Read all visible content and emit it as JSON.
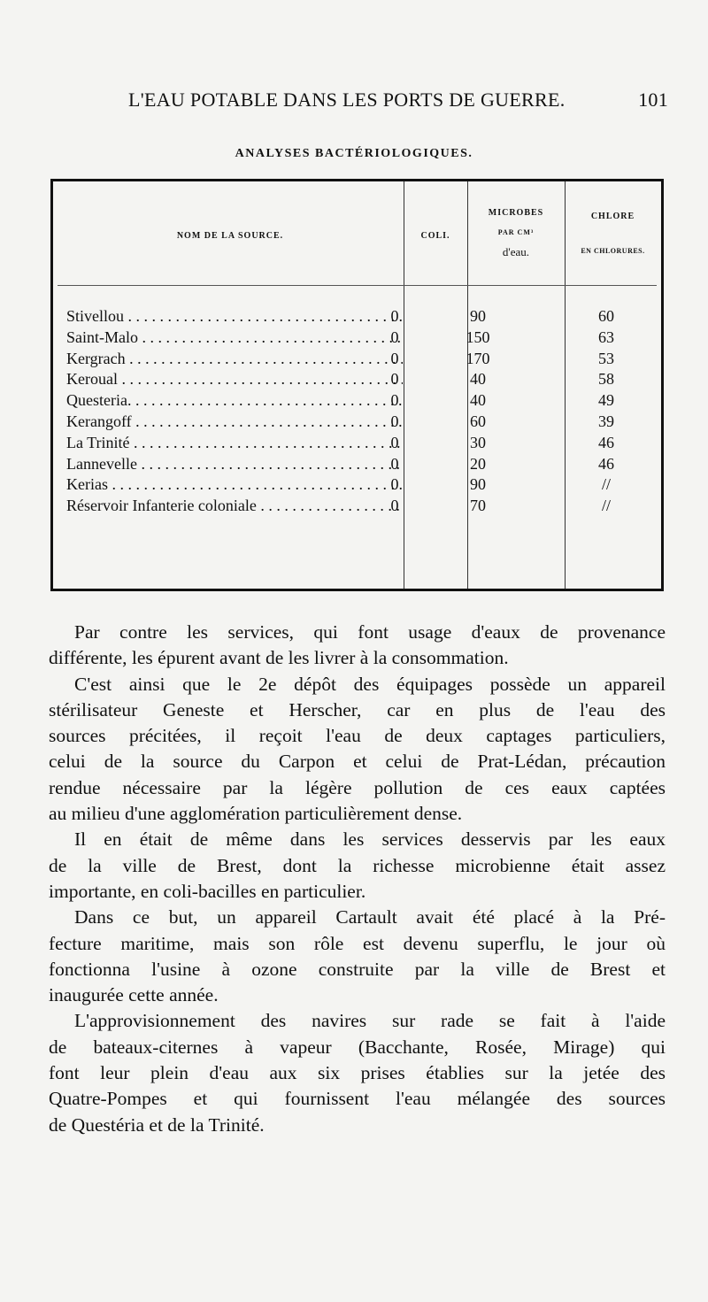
{
  "running_head": {
    "title": "L'EAU POTABLE DANS LES PORTS DE GUERRE.",
    "page_number": "101"
  },
  "table": {
    "caption": "ANALYSES BACTÉRIOLOGIQUES.",
    "headers": {
      "source": "NOM DE LA SOURCE.",
      "coli": "COLI.",
      "microbes_1": "MICROBES",
      "microbes_2": "PAR CM³",
      "microbes_3": "d'eau.",
      "chlore_1": "CHLORE",
      "chlore_2": "EN CHLORURES."
    },
    "rows": [
      {
        "source": "Stivellou",
        "coli": "0",
        "microbes": "90",
        "chlore": "60"
      },
      {
        "source": "Saint-Malo",
        "coli": "0",
        "microbes": "150",
        "chlore": "63"
      },
      {
        "source": "Kergrach",
        "coli": "0",
        "microbes": "170",
        "chlore": "53"
      },
      {
        "source": "Keroual",
        "coli": "0",
        "microbes": "40",
        "chlore": "58"
      },
      {
        "source": "Questeria.",
        "coli": "0",
        "microbes": "40",
        "chlore": "49"
      },
      {
        "source": "Kerangoff",
        "coli": "0",
        "microbes": "60",
        "chlore": "39"
      },
      {
        "source": "La Trinité",
        "coli": "0",
        "microbes": "30",
        "chlore": "46"
      },
      {
        "source": "Lannevelle",
        "coli": "0",
        "microbes": "20",
        "chlore": "46"
      },
      {
        "source": "Kerias",
        "coli": "0",
        "microbes": "90",
        "chlore": "//"
      },
      {
        "source": "Réservoir Infanterie coloniale",
        "coli": "0",
        "microbes": "70",
        "chlore": "//"
      }
    ]
  },
  "body_lines": [
    {
      "text": "Par contre les services, qui font usage d'eaux de provenance",
      "indent": true
    },
    {
      "text": "différente, les épurent avant de les livrer à la consommation.",
      "indent": false,
      "last": true
    },
    {
      "text": "C'est ainsi que le 2e dépôt des équipages possède un appareil",
      "indent": true
    },
    {
      "text": "stérilisateur Geneste et Herscher, car en plus de l'eau des",
      "indent": false
    },
    {
      "text": "sources précitées, il reçoit l'eau de deux captages particuliers,",
      "indent": false
    },
    {
      "text": "celui de la source du Carpon et celui de Prat-Lédan, précaution",
      "indent": false
    },
    {
      "text": "rendue nécessaire par la légère pollution de ces eaux captées",
      "indent": false
    },
    {
      "text": "au milieu d'une agglomération particulièrement dense.",
      "indent": false,
      "last": true
    },
    {
      "text": "Il en était de même dans les services desservis par les eaux",
      "indent": true
    },
    {
      "text": "de la ville de Brest, dont la richesse microbienne était assez",
      "indent": false
    },
    {
      "text": "importante, en coli-bacilles en particulier.",
      "indent": false,
      "last": true
    },
    {
      "text": "Dans ce but, un appareil Cartault avait été placé à la Pré-",
      "indent": true
    },
    {
      "text": "fecture maritime, mais son rôle est devenu superflu, le jour où",
      "indent": false
    },
    {
      "text": "fonctionna l'usine à ozone construite par la ville de Brest et",
      "indent": false
    },
    {
      "text": "inaugurée cette année.",
      "indent": false,
      "last": true
    },
    {
      "text": "L'approvisionnement des navires sur rade se fait à l'aide",
      "indent": true
    },
    {
      "text": "de bateaux-citernes à vapeur (Bacchante, Rosée, Mirage) qui",
      "indent": false
    },
    {
      "text": "font leur plein d'eau aux six prises établies sur la jetée des",
      "indent": false
    },
    {
      "text": "Quatre-Pompes et qui fournissent l'eau mélangée des sources",
      "indent": false
    },
    {
      "text": "de Questéria et de la Trinité.",
      "indent": false,
      "last": true
    }
  ]
}
